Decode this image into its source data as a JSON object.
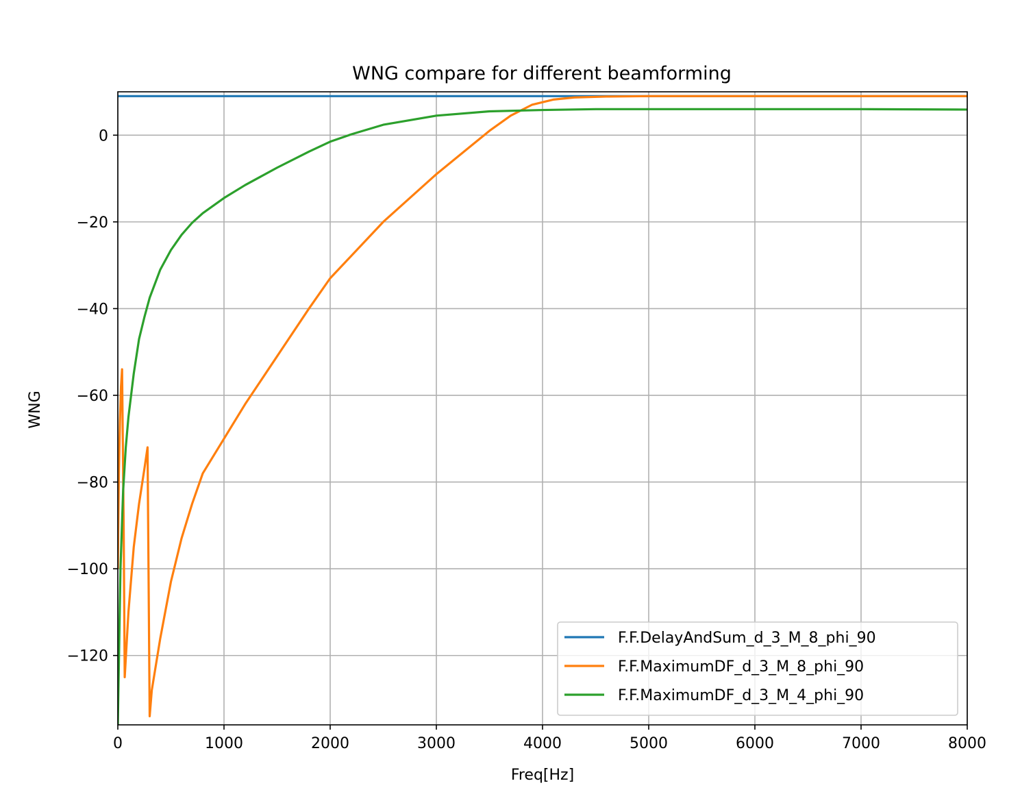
{
  "chart_data": {
    "type": "line",
    "title": "WNG compare for different beamforming",
    "xlabel": "Freq[Hz]",
    "ylabel": "WNG",
    "xlim": [
      0,
      8000
    ],
    "ylim": [
      -136,
      10
    ],
    "xticks": [
      0,
      1000,
      2000,
      3000,
      4000,
      5000,
      6000,
      7000,
      8000
    ],
    "xtick_labels": [
      "0",
      "1000",
      "2000",
      "3000",
      "4000",
      "5000",
      "6000",
      "7000",
      "8000"
    ],
    "yticks": [
      0,
      -20,
      -40,
      -60,
      -80,
      -100,
      -120
    ],
    "ytick_labels": [
      "0",
      "−20",
      "−40",
      "−60",
      "−80",
      "−100",
      "−120"
    ],
    "grid": true,
    "legend_position": "lower-right",
    "series": [
      {
        "name": "F.F.DelayAndSum_d_3_M_8_phi_90",
        "color": "#1f77b4",
        "x": [
          0,
          8000
        ],
        "y": [
          9,
          9
        ]
      },
      {
        "name": "F.F.MaximumDF_d_3_M_8_phi_90",
        "color": "#ff7f0e",
        "x": [
          0,
          10,
          20,
          30,
          40,
          55,
          65,
          100,
          150,
          200,
          250,
          280,
          300,
          320,
          400,
          500,
          600,
          700,
          800,
          1000,
          1200,
          1500,
          1800,
          2000,
          2500,
          3000,
          3300,
          3500,
          3700,
          3900,
          4100,
          4300,
          4600,
          5000,
          6000,
          8000
        ],
        "y": [
          -100,
          -78,
          -66,
          -58,
          -54,
          -90,
          -125,
          -110,
          -95,
          -85,
          -77,
          -72,
          -134,
          -128,
          -116,
          -103,
          -93,
          -85,
          -78,
          -70,
          -62,
          -51,
          -40,
          -33,
          -20,
          -9,
          -3,
          1,
          4.5,
          7,
          8.2,
          8.7,
          8.9,
          9,
          9,
          9
        ]
      },
      {
        "name": "F.F.MaximumDF_d_3_M_4_phi_90",
        "color": "#2ca02c",
        "x": [
          0,
          25,
          50,
          75,
          100,
          150,
          200,
          250,
          300,
          400,
          500,
          600,
          700,
          800,
          1000,
          1200,
          1500,
          1800,
          2000,
          2200,
          2500,
          3000,
          3500,
          4000,
          4500,
          5000,
          6000,
          7000,
          8000
        ],
        "y": [
          -136,
          -100,
          -82,
          -72,
          -65,
          -55,
          -47,
          -42,
          -37.5,
          -31,
          -26.5,
          -23,
          -20.2,
          -18,
          -14.5,
          -11.5,
          -7.5,
          -3.8,
          -1.5,
          0.2,
          2.4,
          4.5,
          5.5,
          5.8,
          6,
          6,
          6,
          6,
          5.9
        ]
      }
    ]
  }
}
